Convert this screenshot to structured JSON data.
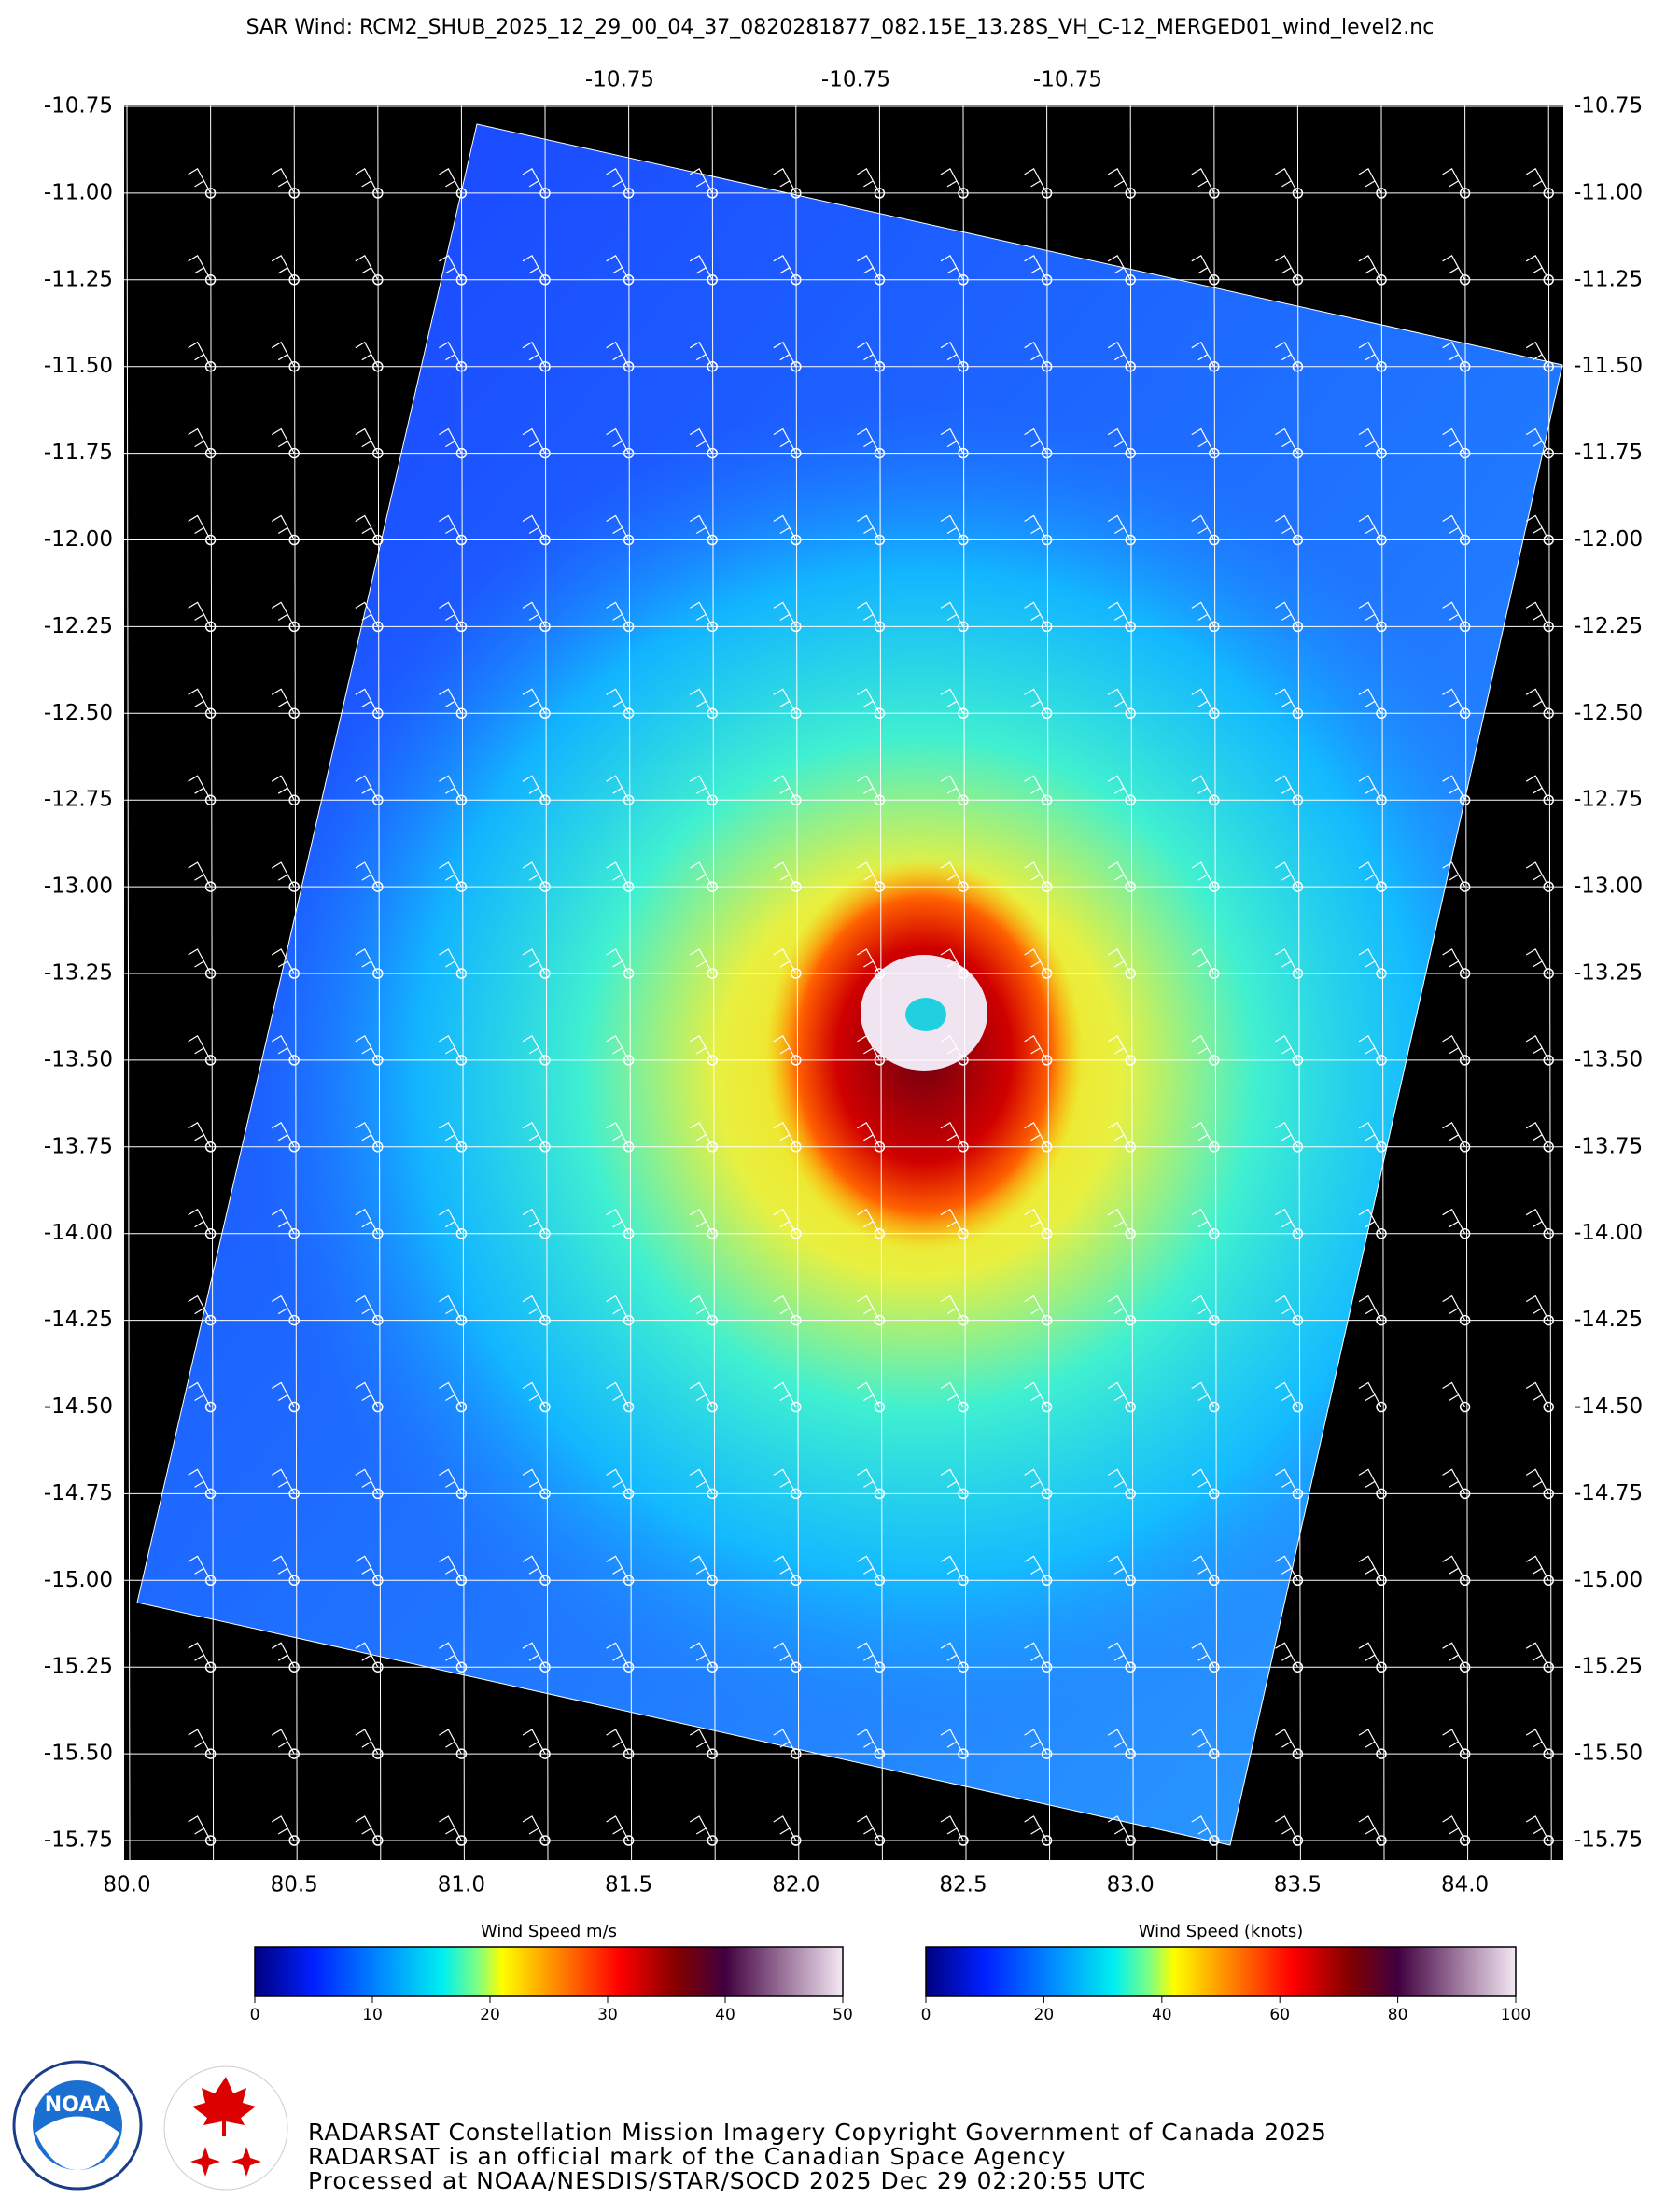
{
  "header": {
    "title": "SAR Wind: RCM2_SHUB_2025_12_29_00_04_37_0820281877_082.15E_13.28S_VH_C-12_MERGED01_wind_level2.nc"
  },
  "map": {
    "top_labels": [
      "-10.75",
      "-10.75",
      "-10.75"
    ],
    "lat_labels": [
      "-10.75",
      "-11.00",
      "-11.25",
      "-11.50",
      "-11.75",
      "-12.00",
      "-12.25",
      "-12.50",
      "-12.75",
      "-13.00",
      "-13.25",
      "-13.50",
      "-13.75",
      "-14.00",
      "-14.25",
      "-14.50",
      "-14.75",
      "-15.00",
      "-15.25",
      "-15.50",
      "-15.75"
    ],
    "lon_labels": [
      "80.0",
      "80.5",
      "81.0",
      "81.5",
      "82.0",
      "82.5",
      "83.0",
      "83.5",
      "84.0"
    ]
  },
  "colorbars": [
    {
      "title": "Wind Speed m/s",
      "ticks": [
        "0",
        "10",
        "20",
        "30",
        "40",
        "50"
      ]
    },
    {
      "title": "Wind Speed (knots)",
      "ticks": [
        "0",
        "20",
        "40",
        "60",
        "80",
        "100"
      ]
    }
  ],
  "footer": {
    "lines": [
      "RADARSAT Constellation Mission Imagery Copyright Government of Canada 2025",
      "RADARSAT is an official mark of the Canadian Space Agency",
      "Processed at NOAA/NESDIS/STAR/SOCD 2025 Dec 29 02:20:55 UTC"
    ],
    "noaa_logo": "NOAA"
  }
}
